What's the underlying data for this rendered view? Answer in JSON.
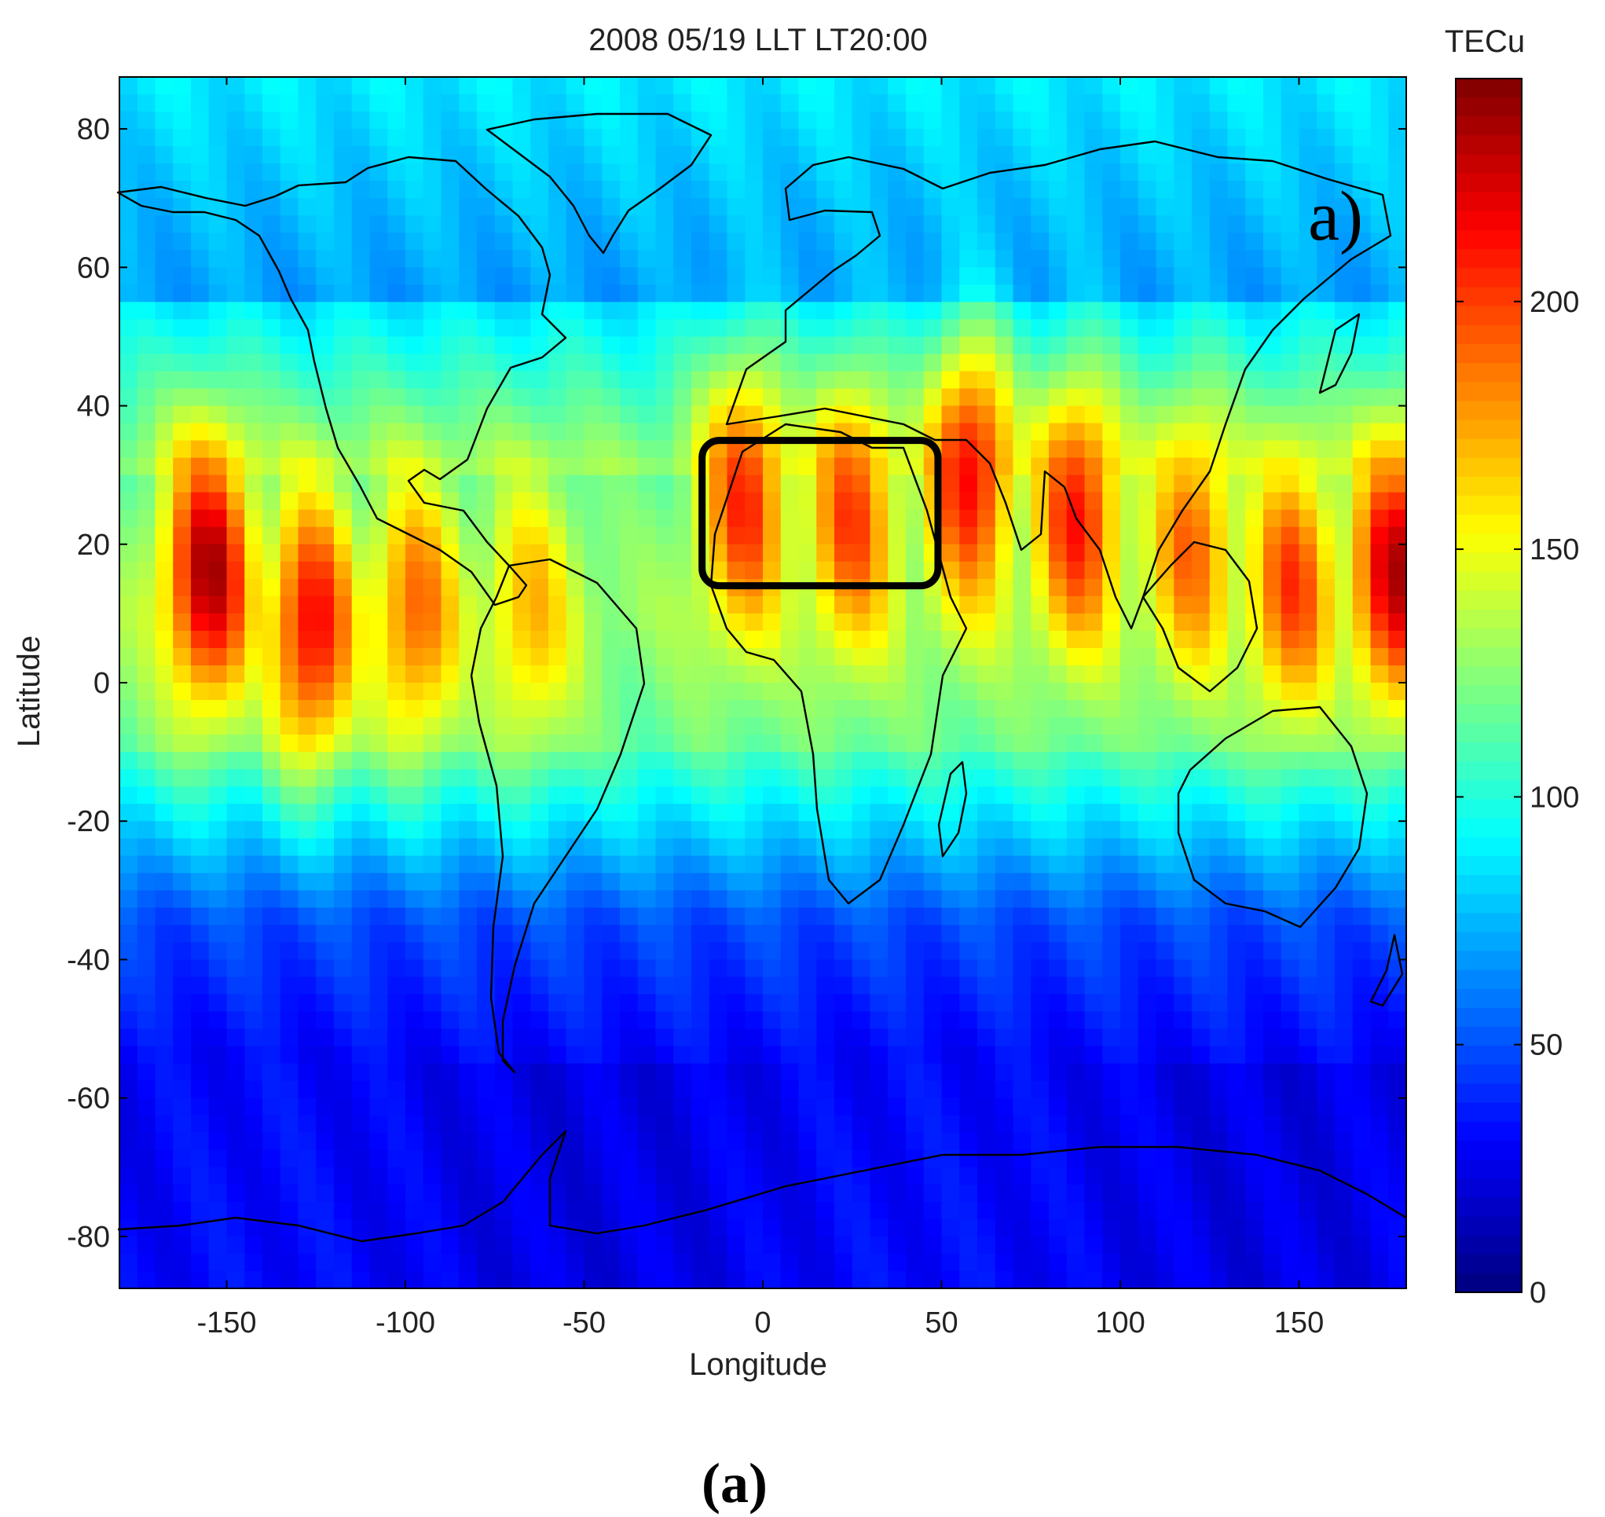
{
  "chart_data": {
    "type": "heatmap",
    "title": "2008 05/19 LLT  LT20:00",
    "xlabel": "Longitude",
    "ylabel": "Latitude",
    "xlim": [
      -180,
      180
    ],
    "ylim": [
      -87.5,
      87.5
    ],
    "x_ticks": [
      "-150",
      "-100",
      "-50",
      "0",
      "50",
      "100",
      "150"
    ],
    "x_tick_values": [
      -150,
      -100,
      -50,
      0,
      50,
      100,
      150
    ],
    "y_ticks": [
      "80",
      "60",
      "40",
      "20",
      "0",
      "-20",
      "-40",
      "-60",
      "-80"
    ],
    "y_tick_values": [
      80,
      60,
      40,
      20,
      0,
      -20,
      -40,
      -60,
      -80
    ],
    "colorbar": {
      "label": "TECu",
      "range": [
        0,
        245
      ],
      "ticks": [
        "0",
        "50",
        "100",
        "150",
        "200"
      ],
      "tick_values": [
        0,
        50,
        100,
        150,
        200
      ],
      "colormap": "jet"
    },
    "grid": false,
    "panel_label": "a)",
    "highlight_box": {
      "lon_range": [
        -17,
        49
      ],
      "lat_range": [
        14,
        35
      ]
    },
    "grid_resolution": {
      "dlon": 5,
      "dlat": 2.5
    },
    "tec_bands": [
      {
        "lon_center": -155,
        "peak_lat": 16,
        "peak_tecu": 235
      },
      {
        "lon_center": -126,
        "peak_lat": 8,
        "peak_tecu": 215
      },
      {
        "lon_center": -97,
        "peak_lat": 10,
        "peak_tecu": 190
      },
      {
        "lon_center": -65,
        "peak_lat": 10,
        "peak_tecu": 170
      },
      {
        "lon_center": -5,
        "peak_lat": 26,
        "peak_tecu": 205
      },
      {
        "lon_center": 25,
        "peak_lat": 24,
        "peak_tecu": 200
      },
      {
        "lon_center": 58,
        "peak_lat": 30,
        "peak_tecu": 215
      },
      {
        "lon_center": 88,
        "peak_lat": 24,
        "peak_tecu": 210
      },
      {
        "lon_center": 120,
        "peak_lat": 20,
        "peak_tecu": 190
      },
      {
        "lon_center": 148,
        "peak_lat": 14,
        "peak_tecu": 200
      },
      {
        "lon_center": 177,
        "peak_lat": 16,
        "peak_tecu": 230
      }
    ]
  },
  "figure": {
    "caption": "(a)"
  }
}
